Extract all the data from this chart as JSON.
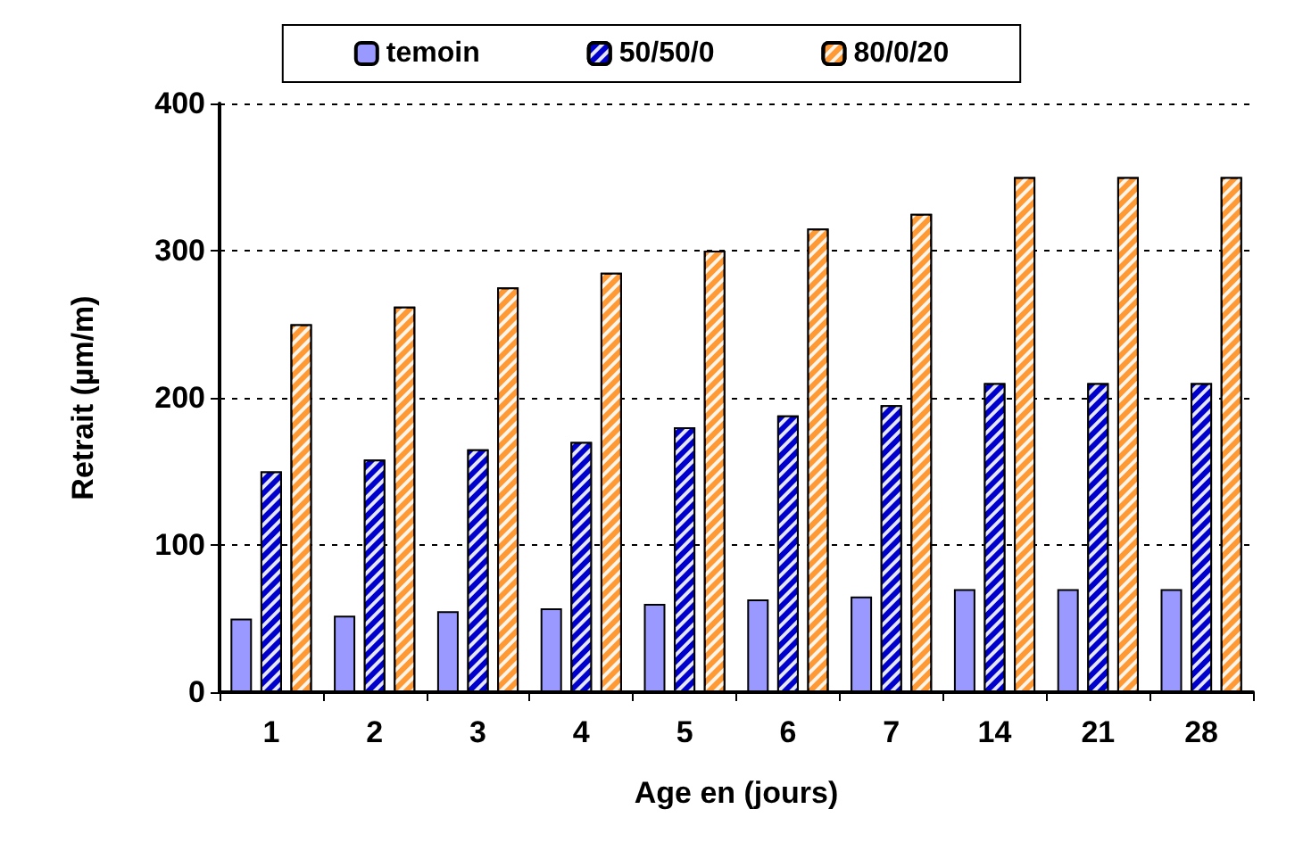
{
  "chart_data": {
    "type": "bar",
    "xlabel": "Age en (jours)",
    "ylabel": "Retrait (µm/m)",
    "categories": [
      "1",
      "2",
      "3",
      "4",
      "5",
      "6",
      "7",
      "14",
      "21",
      "28"
    ],
    "series": [
      {
        "name": "temoin",
        "color": "#9999ff",
        "values": [
          50,
          52,
          55,
          57,
          60,
          63,
          65,
          70,
          70,
          70
        ]
      },
      {
        "name": "50/50/0",
        "color": "#0000cc",
        "values": [
          150,
          158,
          165,
          170,
          180,
          188,
          195,
          210,
          210,
          210
        ]
      },
      {
        "name": "80/0/20",
        "color": "#ff9933",
        "values": [
          250,
          262,
          275,
          285,
          300,
          315,
          325,
          350,
          350,
          350
        ]
      }
    ],
    "ylim": [
      0,
      400
    ],
    "yticks": [
      0,
      100,
      200,
      300,
      400
    ],
    "grid": "y",
    "legend": "top"
  }
}
